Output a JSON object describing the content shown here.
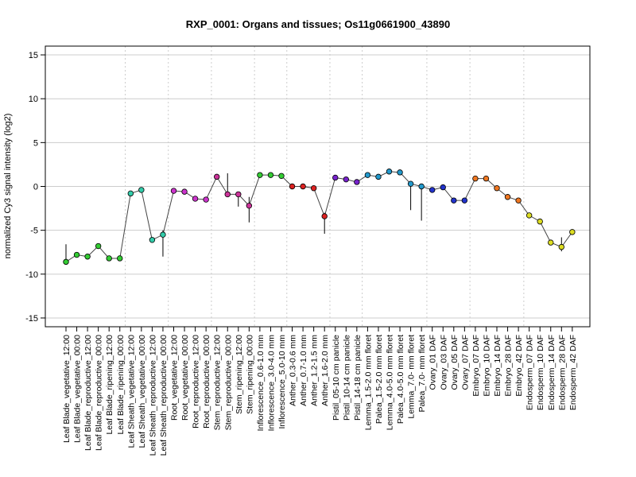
{
  "chart_data": {
    "type": "line",
    "title": "RXP_0001: Organs and tissues; Os11g0661900_43890",
    "ylabel": "normalized Cy3 signal intensity (log2)",
    "xlabel": "",
    "ylim": [
      -16,
      16
    ],
    "yticks": [
      -15,
      -10,
      -5,
      0,
      5,
      10,
      15
    ],
    "grid": true,
    "categories": [
      "Leaf Blade_vegetative_12:00",
      "Leaf Blade_vegetative_00:00",
      "Leaf Blade_reproductive_12:00",
      "Leaf Blade_reproductive_00:00",
      "Leaf Blade_ripening_12:00",
      "Leaf Blade_ripening_00:00",
      "Leaf Sheath_vegetative_12:00",
      "Leaf Sheath_vegetative_00:00",
      "Leaf Sheath_reproductive_12:00",
      "Leaf Sheath_reproductive_00:00",
      "Root_vegetative_12:00",
      "Root_vegetative_00:00",
      "Root_reproductive_12:00",
      "Root_reproductive_00:00",
      "Stem_reproductive_12:00",
      "Stem_reproductive_00:00",
      "Stem_ripening_12:00",
      "Stem_ripening_00:00",
      "Inflorescence_0.6-1.0 mm",
      "Inflorescence_3.0-4.0 mm",
      "Inflorescence_5.0-10 mm",
      "Anther_0.3-0.6 mm",
      "Anther_0.7-1.0 mm",
      "Anther_1.2-1.5 mm",
      "Anther_1.6-2.0 mm",
      "Pistil_05-10 cm panicle",
      "Pistil_10-14 cm panicle",
      "Pistil_14-18 cm panicle",
      "Lemma_1.5-2.0 mm floret",
      "Palea_1.5-2.0 mm floret",
      "Lemma_4.0-5.0 mm floret",
      "Palea_4.0-5.0 mm floret",
      "Lemma_7.0- mm floret",
      "Palea_7.0- mm floret",
      "Ovary_01 DAF",
      "Ovary_03 DAF",
      "Ovary_05 DAF",
      "Ovary_07 DAF",
      "Embryo_07 DAF",
      "Embryo_10 DAF",
      "Embryo_14 DAF",
      "Embryo_28 DAF",
      "Embryo_42 DAF",
      "Endosperm_07 DAF",
      "Endosperm_10 DAF",
      "Endosperm_14 DAF",
      "Endosperm_28 DAF",
      "Endosperm_42 DAF"
    ],
    "values": [
      -8.6,
      -7.8,
      -8.0,
      -6.8,
      -8.2,
      -8.2,
      -0.8,
      -0.4,
      -6.1,
      -5.5,
      -0.5,
      -0.6,
      -1.4,
      -1.5,
      1.1,
      -0.9,
      -0.9,
      -2.2,
      1.3,
      1.3,
      1.2,
      0.0,
      0.0,
      -0.2,
      -3.4,
      1.0,
      0.8,
      0.5,
      1.3,
      1.1,
      1.7,
      1.6,
      0.3,
      0.0,
      -0.4,
      -0.1,
      -1.6,
      -1.6,
      0.9,
      0.9,
      -0.2,
      -1.2,
      -1.6,
      -3.3,
      -4.0,
      -6.4,
      -6.9,
      -5.2
    ],
    "error_bars": [
      {
        "index": 0,
        "low": -8.6,
        "high": -6.6
      },
      {
        "index": 9,
        "low": -8.0,
        "high": -5.0
      },
      {
        "index": 15,
        "low": -0.9,
        "high": 1.5
      },
      {
        "index": 16,
        "low": -2.3,
        "high": -0.9
      },
      {
        "index": 17,
        "low": -4.1,
        "high": -1.2
      },
      {
        "index": 24,
        "low": -5.4,
        "high": -3.0
      },
      {
        "index": 32,
        "low": -2.7,
        "high": 0.3
      },
      {
        "index": 33,
        "low": -3.9,
        "high": 0.0
      },
      {
        "index": 46,
        "low": -7.4,
        "high": -5.8
      }
    ],
    "group_separators_after": [
      5,
      9,
      13,
      17,
      20,
      24,
      27,
      33,
      37,
      42
    ],
    "colors": [
      "#33cc33",
      "#33cc33",
      "#33cc33",
      "#33cc33",
      "#33cc33",
      "#33cc33",
      "#33ccaa",
      "#33ccaa",
      "#33ccaa",
      "#33ccaa",
      "#cc33cc",
      "#cc33cc",
      "#cc33cc",
      "#cc33cc",
      "#cc3399",
      "#cc3399",
      "#cc3399",
      "#cc3399",
      "#33cc33",
      "#33cc33",
      "#33cc33",
      "#dd2222",
      "#dd2222",
      "#dd2222",
      "#dd2222",
      "#7722cc",
      "#7722cc",
      "#7722cc",
      "#2299cc",
      "#2299cc",
      "#2299cc",
      "#2299cc",
      "#2299cc",
      "#2299cc",
      "#2233cc",
      "#2233cc",
      "#2233cc",
      "#2233cc",
      "#ee7722",
      "#ee7722",
      "#ee7722",
      "#ee7722",
      "#ee7722",
      "#dddd22",
      "#dddd22",
      "#dddd22",
      "#dddd22",
      "#dddd22"
    ]
  }
}
